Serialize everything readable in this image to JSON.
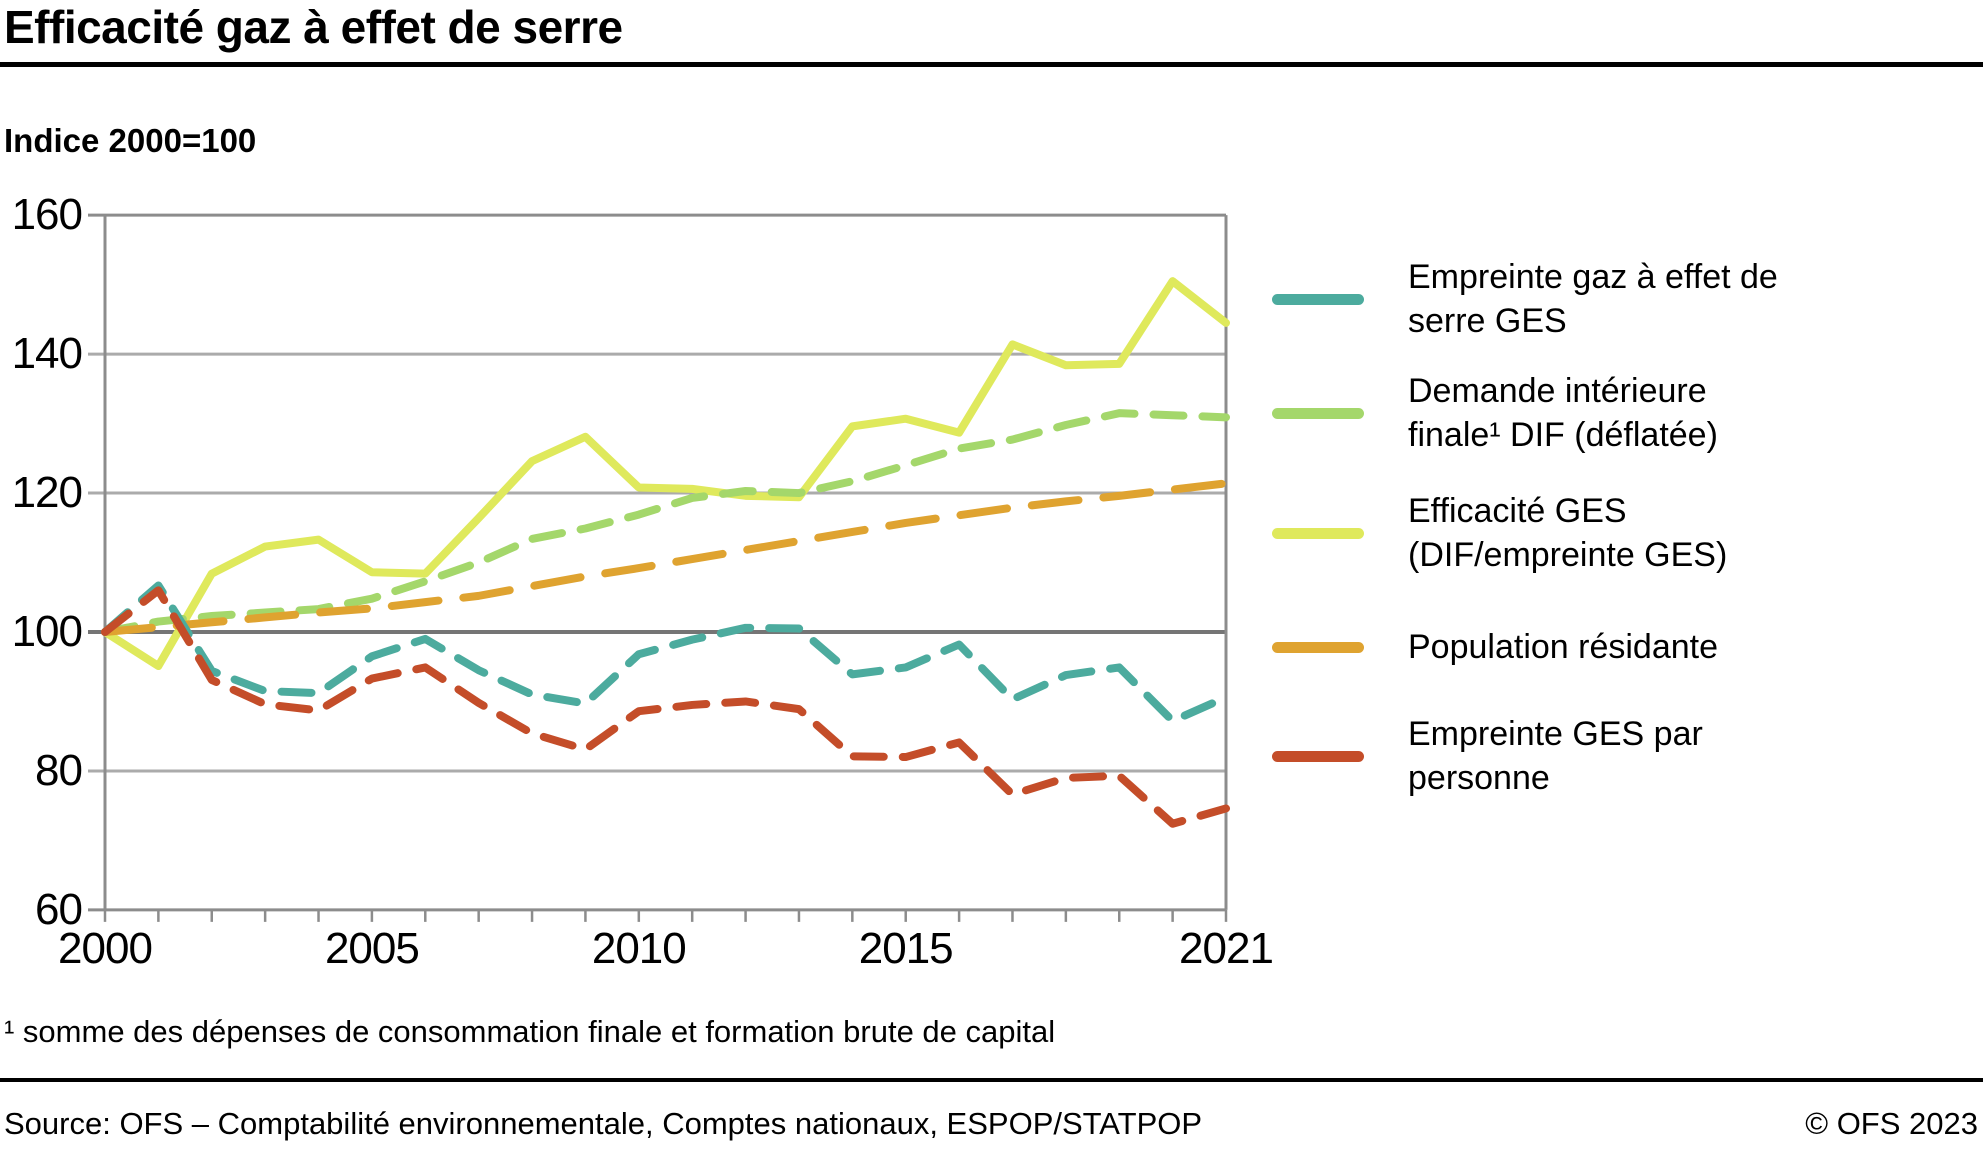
{
  "header": {
    "title": "Efficacité gaz à effet de serre",
    "subtitle": "Indice 2000=100"
  },
  "chart_data": {
    "type": "line",
    "title": "Efficacité gaz à effet de serre",
    "subtitle": "Indice 2000=100",
    "x": [
      2000,
      2001,
      2002,
      2003,
      2004,
      2005,
      2006,
      2007,
      2008,
      2009,
      2010,
      2011,
      2012,
      2013,
      2014,
      2015,
      2016,
      2017,
      2018,
      2019,
      2020,
      2021
    ],
    "xticks": [
      2000,
      2005,
      2010,
      2015,
      2021
    ],
    "yticks": [
      160,
      140,
      120,
      100,
      80,
      60
    ],
    "ylim": [
      60,
      160
    ],
    "grid": "horizontal",
    "legend_position": "right",
    "series": [
      {
        "id": "empreinte_ges",
        "name": "Empreinte gaz à effet de serre GES",
        "label_lines": "Empreinte gaz à effet de\nserre GES",
        "color": "#4CAB9E",
        "line_style": "dashed",
        "values": [
          100,
          106.7,
          94.4,
          91.5,
          91.2,
          96.5,
          99.0,
          94.5,
          91.0,
          89.7,
          96.8,
          98.9,
          100.6,
          100.5,
          93.9,
          94.9,
          98.2,
          90.3,
          93.8,
          94.9,
          87.2,
          90.6
        ]
      },
      {
        "id": "dif",
        "name": "Demande intérieure finale¹ DIF (déflatée)",
        "label_lines": "Demande intérieure\nfinale¹ DIF (déflatée)",
        "color": "#A4D76B",
        "line_style": "dashed",
        "values": [
          100,
          101.5,
          102.3,
          102.8,
          103.3,
          104.8,
          107.3,
          110.0,
          113.4,
          114.9,
          116.9,
          119.3,
          120.3,
          120.0,
          121.7,
          124.0,
          126.4,
          127.7,
          129.8,
          131.5,
          131.2,
          130.9
        ]
      },
      {
        "id": "efficacite_ges",
        "name": "Efficacité GES (DIF/empreinte GES)",
        "label_lines": "Efficacité GES\n(DIF/empreinte GES)",
        "color": "#DFE95C",
        "line_style": "solid",
        "values": [
          100,
          95.1,
          108.4,
          112.3,
          113.3,
          108.6,
          108.4,
          116.4,
          124.6,
          128.1,
          120.8,
          120.6,
          119.6,
          119.4,
          129.6,
          130.7,
          128.7,
          141.4,
          138.4,
          138.6,
          150.5,
          144.5
        ]
      },
      {
        "id": "population",
        "name": "Population résidante",
        "label_lines": "Population résidante",
        "color": "#DFA330",
        "line_style": "long-dashed",
        "values": [
          100,
          100.7,
          101.4,
          102.1,
          102.8,
          103.4,
          104.3,
          105.2,
          106.6,
          108.0,
          109.2,
          110.5,
          111.8,
          113.1,
          114.4,
          115.7,
          116.8,
          117.9,
          118.8,
          119.6,
          120.5,
          121.4
        ]
      },
      {
        "id": "empreinte_par_personne",
        "name": "Empreinte GES par personne",
        "label_lines": "Empreinte GES par\npersonne",
        "color": "#C44D29",
        "line_style": "dashed",
        "values": [
          100,
          106.0,
          93.1,
          89.6,
          88.7,
          93.3,
          94.9,
          89.8,
          85.4,
          83.1,
          88.6,
          89.5,
          90.0,
          88.9,
          82.1,
          82.0,
          84.1,
          76.6,
          79.0,
          79.3,
          72.4,
          74.6
        ]
      }
    ],
    "colors": {
      "grid": "#ABABAB",
      "frame": "#8C8C8C",
      "zero_line": "#757575"
    }
  },
  "footer": {
    "footnote": "¹ somme des dépenses de consommation finale et formation brute de capital",
    "source": "Source: OFS – Comptabilité environnementale, Comptes nationaux, ESPOP/STATPOP",
    "copyright": "© OFS 2023"
  }
}
